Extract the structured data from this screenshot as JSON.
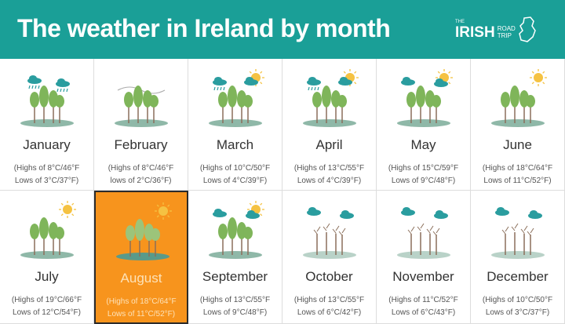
{
  "header": {
    "title": "The weather in Ireland by month",
    "logo": {
      "the": "THE",
      "irish": "IRISH",
      "road": "ROAD",
      "trip": "TRIP"
    }
  },
  "colors": {
    "header": "#1a9f97",
    "highlight": "#f7941d",
    "tree": "#7fb55a",
    "cloud": "#2a9d9f",
    "sun": "#f5c242"
  },
  "months": [
    {
      "name": "January",
      "highs": "(Highs of  8°C/46°F",
      "lows": "Lows of 3°C/37°F)",
      "weather": "rain",
      "season": "green"
    },
    {
      "name": "February",
      "highs": "(Highs of  8°C/46°F",
      "lows": "lows of 2°C/36°F)",
      "weather": "wind",
      "season": "green"
    },
    {
      "name": "March",
      "highs": "(Highs of 10°C/50°F",
      "lows": "Lows of 4°C/39°F)",
      "weather": "rain-sun",
      "season": "green"
    },
    {
      "name": "April",
      "highs": "(Highs of 13°C/55°F",
      "lows": "Lows of 4°C/39°F)",
      "weather": "rain-sun",
      "season": "green"
    },
    {
      "name": "May",
      "highs": "(Highs of 15°C/59°F",
      "lows": "Lows of 9°C/48°F)",
      "weather": "cloud-sun",
      "season": "green"
    },
    {
      "name": "June",
      "highs": "(Highs of  18°C/64°F",
      "lows": "Lows of 11°C/52°F)",
      "weather": "sun",
      "season": "green"
    },
    {
      "name": "July",
      "highs": "(Highs of  19°C/66°F",
      "lows": "Lows of 12°C/54°F)",
      "weather": "sun",
      "season": "green"
    },
    {
      "name": "August",
      "highs": "(Highs of  18°C/64°F",
      "lows": "Lows of 11°C/52°F)",
      "weather": "sun",
      "season": "green",
      "highlighted": true
    },
    {
      "name": "September",
      "highs": "(Highs of 13°C/55°F",
      "lows": "Lows of 9°C/48°F)",
      "weather": "cloud-sun",
      "season": "green"
    },
    {
      "name": "October",
      "highs": "(Highs of  13°C/55°F",
      "lows": "Lows of 6°C/42°F)",
      "weather": "cloud-rain",
      "season": "bare"
    },
    {
      "name": "November",
      "highs": "(Highs of  11°C/52°F",
      "lows": "Lows of 6°C/43°F)",
      "weather": "cloud-rain",
      "season": "bare"
    },
    {
      "name": "December",
      "highs": "(Highs of 10°C/50°F",
      "lows": "Lows of 3°C/37°F)",
      "weather": "cloud-rain",
      "season": "bare"
    }
  ]
}
